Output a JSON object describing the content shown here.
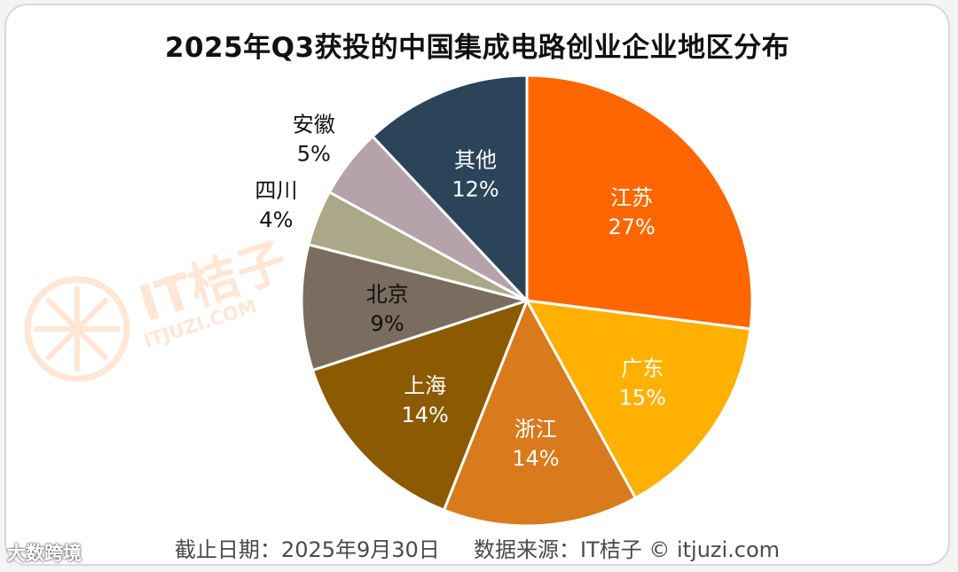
{
  "chart_data": {
    "type": "pie",
    "title": "2025年Q3获投的中国集成电路创业企业地区分布",
    "categories": [
      "江苏",
      "广东",
      "浙江",
      "上海",
      "北京",
      "四川",
      "安徽",
      "其他"
    ],
    "values": [
      27,
      15,
      14,
      14,
      9,
      4,
      5,
      12
    ],
    "value_labels": [
      "27%",
      "15%",
      "14%",
      "14%",
      "9%",
      "4%",
      "5%",
      "12%"
    ],
    "colors": [
      "#ff6600",
      "#ffb000",
      "#d97a1c",
      "#8c5a00",
      "#7a6c5e",
      "#aaa886",
      "#b5a2aa",
      "#2b4459"
    ],
    "label_colors": [
      "#ffffff",
      "#ffffff",
      "#ffffff",
      "#ffffff",
      "#111111",
      "#111111",
      "#111111",
      "#ffffff"
    ],
    "label_outside": [
      false,
      false,
      false,
      false,
      false,
      true,
      true,
      false
    ],
    "start_angle_deg": 0,
    "direction": "clockwise"
  },
  "footer": {
    "text": "截止日期：2025年9月30日     数据来源：IT桔子 © itjuzi.com"
  },
  "watermark": {
    "text": "IT桔子",
    "sub": "ITJUZI.COM"
  },
  "brand": {
    "text": "大数跨境"
  }
}
